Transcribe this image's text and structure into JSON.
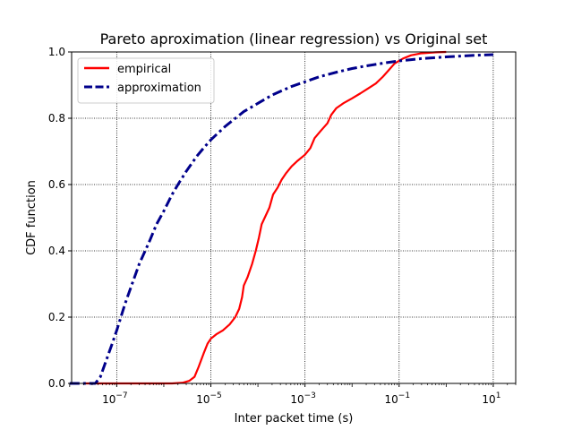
{
  "chart_data": {
    "type": "line",
    "title": "Pareto aproximation (linear regression) vs Original set",
    "xlabel": "Inter packet time (s)",
    "ylabel": "CDF function",
    "x_scale": "log",
    "xlim": [
      1.1e-08,
      30
    ],
    "ylim": [
      0,
      1.0
    ],
    "grid": true,
    "legend_position": "top-left",
    "x_ticks": [
      {
        "value": 1e-07,
        "base": "10",
        "exp": "−7"
      },
      {
        "value": 1e-05,
        "base": "10",
        "exp": "−5"
      },
      {
        "value": 0.001,
        "base": "10",
        "exp": "−3"
      },
      {
        "value": 0.1,
        "base": "10",
        "exp": "−1"
      },
      {
        "value": 10,
        "base": "10",
        "exp": "1"
      }
    ],
    "y_ticks": [
      {
        "value": 0.0,
        "label": "0.0"
      },
      {
        "value": 0.2,
        "label": "0.2"
      },
      {
        "value": 0.4,
        "label": "0.4"
      },
      {
        "value": 0.6,
        "label": "0.6"
      },
      {
        "value": 0.8,
        "label": "0.8"
      },
      {
        "value": 1.0,
        "label": "1.0"
      }
    ],
    "series": [
      {
        "name": "empirical",
        "color": "#ff0000",
        "style": "solid",
        "points": [
          [
            2e-08,
            0.0
          ],
          [
            1e-07,
            0.0
          ],
          [
            5e-07,
            0.0
          ],
          [
            1.5e-06,
            0.0
          ],
          [
            2.5e-06,
            0.002
          ],
          [
            3.5e-06,
            0.008
          ],
          [
            4.5e-06,
            0.02
          ],
          [
            5.5e-06,
            0.05
          ],
          [
            7e-06,
            0.09
          ],
          [
            8.5e-06,
            0.12
          ],
          [
            1e-05,
            0.135
          ],
          [
            1.3e-05,
            0.148
          ],
          [
            1.8e-05,
            0.16
          ],
          [
            2.5e-05,
            0.178
          ],
          [
            3.3e-05,
            0.2
          ],
          [
            4e-05,
            0.225
          ],
          [
            4.6e-05,
            0.26
          ],
          [
            5e-05,
            0.295
          ],
          [
            6e-05,
            0.32
          ],
          [
            7.5e-05,
            0.36
          ],
          [
            9e-05,
            0.4
          ],
          [
            0.000105,
            0.44
          ],
          [
            0.00012,
            0.48
          ],
          [
            0.000145,
            0.505
          ],
          [
            0.000175,
            0.53
          ],
          [
            0.00021,
            0.57
          ],
          [
            0.00026,
            0.59
          ],
          [
            0.00032,
            0.615
          ],
          [
            0.0004,
            0.635
          ],
          [
            0.00052,
            0.655
          ],
          [
            0.0007,
            0.672
          ],
          [
            0.001,
            0.69
          ],
          [
            0.0013,
            0.71
          ],
          [
            0.0016,
            0.74
          ],
          [
            0.0021,
            0.76
          ],
          [
            0.003,
            0.785
          ],
          [
            0.0036,
            0.81
          ],
          [
            0.0046,
            0.83
          ],
          [
            0.0065,
            0.845
          ],
          [
            0.01,
            0.86
          ],
          [
            0.015,
            0.875
          ],
          [
            0.022,
            0.89
          ],
          [
            0.032,
            0.905
          ],
          [
            0.045,
            0.925
          ],
          [
            0.06,
            0.945
          ],
          [
            0.08,
            0.965
          ],
          [
            0.12,
            0.98
          ],
          [
            0.18,
            0.99
          ],
          [
            0.3,
            0.996
          ],
          [
            0.6,
            0.999
          ],
          [
            1.0,
            1.0
          ]
        ]
      },
      {
        "name": "approximation",
        "color": "#00008b",
        "style": "dashdot",
        "points": [
          [
            1e-08,
            0.0
          ],
          [
            3.5e-08,
            0.0
          ],
          [
            4.5e-08,
            0.02
          ],
          [
            6e-08,
            0.07
          ],
          [
            8e-08,
            0.12
          ],
          [
            1e-07,
            0.16
          ],
          [
            1.5e-07,
            0.24
          ],
          [
            2e-07,
            0.29
          ],
          [
            3e-07,
            0.36
          ],
          [
            5e-07,
            0.43
          ],
          [
            7e-07,
            0.48
          ],
          [
            1e-06,
            0.52
          ],
          [
            1.5e-06,
            0.57
          ],
          [
            2e-06,
            0.6
          ],
          [
            3e-06,
            0.64
          ],
          [
            5e-06,
            0.685
          ],
          [
            7e-06,
            0.71
          ],
          [
            1e-05,
            0.735
          ],
          [
            2e-05,
            0.775
          ],
          [
            5e-05,
            0.82
          ],
          [
            0.0001,
            0.845
          ],
          [
            0.0002,
            0.87
          ],
          [
            0.0005,
            0.895
          ],
          [
            0.001,
            0.91
          ],
          [
            0.002,
            0.925
          ],
          [
            0.005,
            0.94
          ],
          [
            0.01,
            0.95
          ],
          [
            0.02,
            0.958
          ],
          [
            0.05,
            0.967
          ],
          [
            0.1,
            0.973
          ],
          [
            0.3,
            0.98
          ],
          [
            1.0,
            0.985
          ],
          [
            3.0,
            0.989
          ],
          [
            10.0,
            0.992
          ]
        ]
      }
    ]
  }
}
